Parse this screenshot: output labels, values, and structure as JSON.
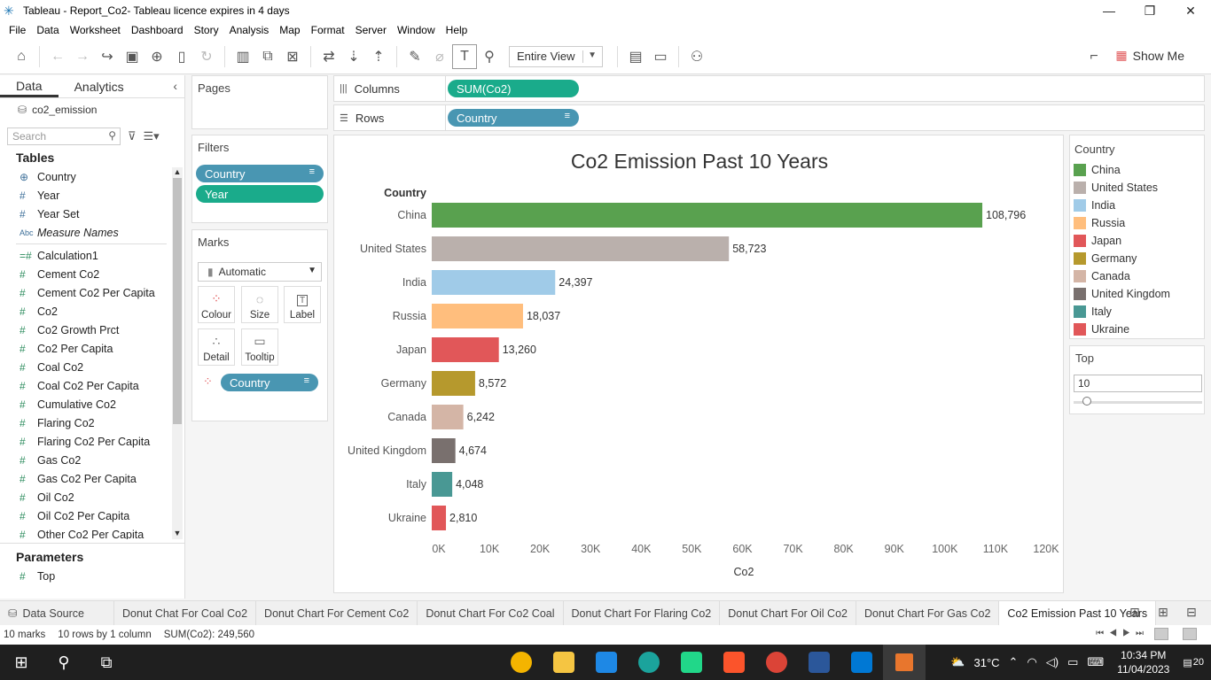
{
  "window": {
    "title": "Tableau - Report_Co2- Tableau licence expires in 4 days"
  },
  "menu": [
    "File",
    "Data",
    "Worksheet",
    "Dashboard",
    "Story",
    "Analysis",
    "Map",
    "Format",
    "Server",
    "Window",
    "Help"
  ],
  "toolbar": {
    "view_mode": "Entire View",
    "show_me": "Show Me"
  },
  "data_pane": {
    "tab_data": "Data",
    "tab_analytics": "Analytics",
    "datasource": "co2_emission",
    "search_placeholder": "Search",
    "tables_heading": "Tables",
    "dimensions": [
      {
        "icon": "globe-icon",
        "name": "Country"
      },
      {
        "icon": "hash-icon",
        "name": "Year"
      },
      {
        "icon": "set-icon",
        "name": "Year Set"
      },
      {
        "icon": "abc-icon",
        "name": "Measure Names"
      }
    ],
    "measures": [
      "Calculation1",
      "Cement Co2",
      "Cement Co2 Per Capita",
      "Co2",
      "Co2 Growth Prct",
      "Co2 Per Capita",
      "Coal Co2",
      "Coal Co2 Per Capita",
      "Cumulative Co2",
      "Flaring Co2",
      "Flaring Co2 Per Capita",
      "Gas Co2",
      "Gas Co2 Per Capita",
      "Oil Co2",
      "Oil Co2 Per Capita",
      "Other Co2 Per Capita"
    ],
    "parameters_heading": "Parameters",
    "parameters": [
      "Top"
    ]
  },
  "pages_card": {
    "title": "Pages"
  },
  "filters_card": {
    "title": "Filters",
    "pills": [
      "Country",
      "Year"
    ]
  },
  "marks_card": {
    "title": "Marks",
    "mark_type": "Automatic",
    "buttons": [
      "Colour",
      "Size",
      "Label",
      "Detail",
      "Tooltip"
    ],
    "pill": "Country"
  },
  "shelves": {
    "columns_label": "Columns",
    "columns_pill": "SUM(Co2)",
    "rows_label": "Rows",
    "rows_pill": "Country"
  },
  "chart_data": {
    "type": "bar",
    "orientation": "horizontal",
    "title": "Co2 Emission Past 10 Years",
    "ylabel": "Country",
    "xlabel": "Co2",
    "categories": [
      "China",
      "United States",
      "India",
      "Russia",
      "Japan",
      "Germany",
      "Canada",
      "United Kingdom",
      "Italy",
      "Ukraine"
    ],
    "values": [
      108796,
      58723,
      24397,
      18037,
      13260,
      8572,
      6242,
      4674,
      4048,
      2810
    ],
    "value_labels": [
      "108,796",
      "58,723",
      "24,397",
      "18,037",
      "13,260",
      "8,572",
      "6,242",
      "4,674",
      "4,048",
      "2,810"
    ],
    "colors": [
      "#59a14f",
      "#bab0ac",
      "#a0cbe8",
      "#ffbe7d",
      "#e15759",
      "#b6992d",
      "#d4b5a6",
      "#79706e",
      "#499894",
      "#e15759"
    ],
    "xlim": [
      0,
      120000
    ],
    "x_ticks": [
      0,
      10000,
      20000,
      30000,
      40000,
      50000,
      60000,
      70000,
      80000,
      90000,
      100000,
      110000,
      120000
    ],
    "x_tick_labels": [
      "0K",
      "10K",
      "20K",
      "30K",
      "40K",
      "50K",
      "60K",
      "70K",
      "80K",
      "90K",
      "100K",
      "110K",
      "120K"
    ],
    "grid": false
  },
  "legend": {
    "title": "Country",
    "items": [
      {
        "label": "China",
        "color": "#59a14f"
      },
      {
        "label": "United States",
        "color": "#bab0ac"
      },
      {
        "label": "India",
        "color": "#a0cbe8"
      },
      {
        "label": "Russia",
        "color": "#ffbe7d"
      },
      {
        "label": "Japan",
        "color": "#e15759"
      },
      {
        "label": "Germany",
        "color": "#b6992d"
      },
      {
        "label": "Canada",
        "color": "#d4b5a6"
      },
      {
        "label": "United Kingdom",
        "color": "#79706e"
      },
      {
        "label": "Italy",
        "color": "#499894"
      },
      {
        "label": "Ukraine",
        "color": "#e15759"
      }
    ]
  },
  "top_param": {
    "title": "Top",
    "value": "10"
  },
  "sheet_tabs": {
    "data_source": "Data Source",
    "tabs": [
      "Donut Chat For Coal Co2",
      "Donut Chart For Cement Co2",
      "Donut Chart For Co2 Coal",
      "Donut Chart For Flaring Co2",
      "Donut Chart For Oil Co2",
      "Donut Chart For Gas Co2",
      "Co2 Emission Past 10 Years"
    ],
    "active": "Co2 Emission Past 10 Years"
  },
  "status": {
    "marks": "10 marks",
    "rows": "10 rows by 1 column",
    "sum": "SUM(Co2): 249,560"
  },
  "taskbar": {
    "temperature": "31°C",
    "time": "10:34 PM",
    "date": "11/04/2023",
    "notifications": "20"
  }
}
